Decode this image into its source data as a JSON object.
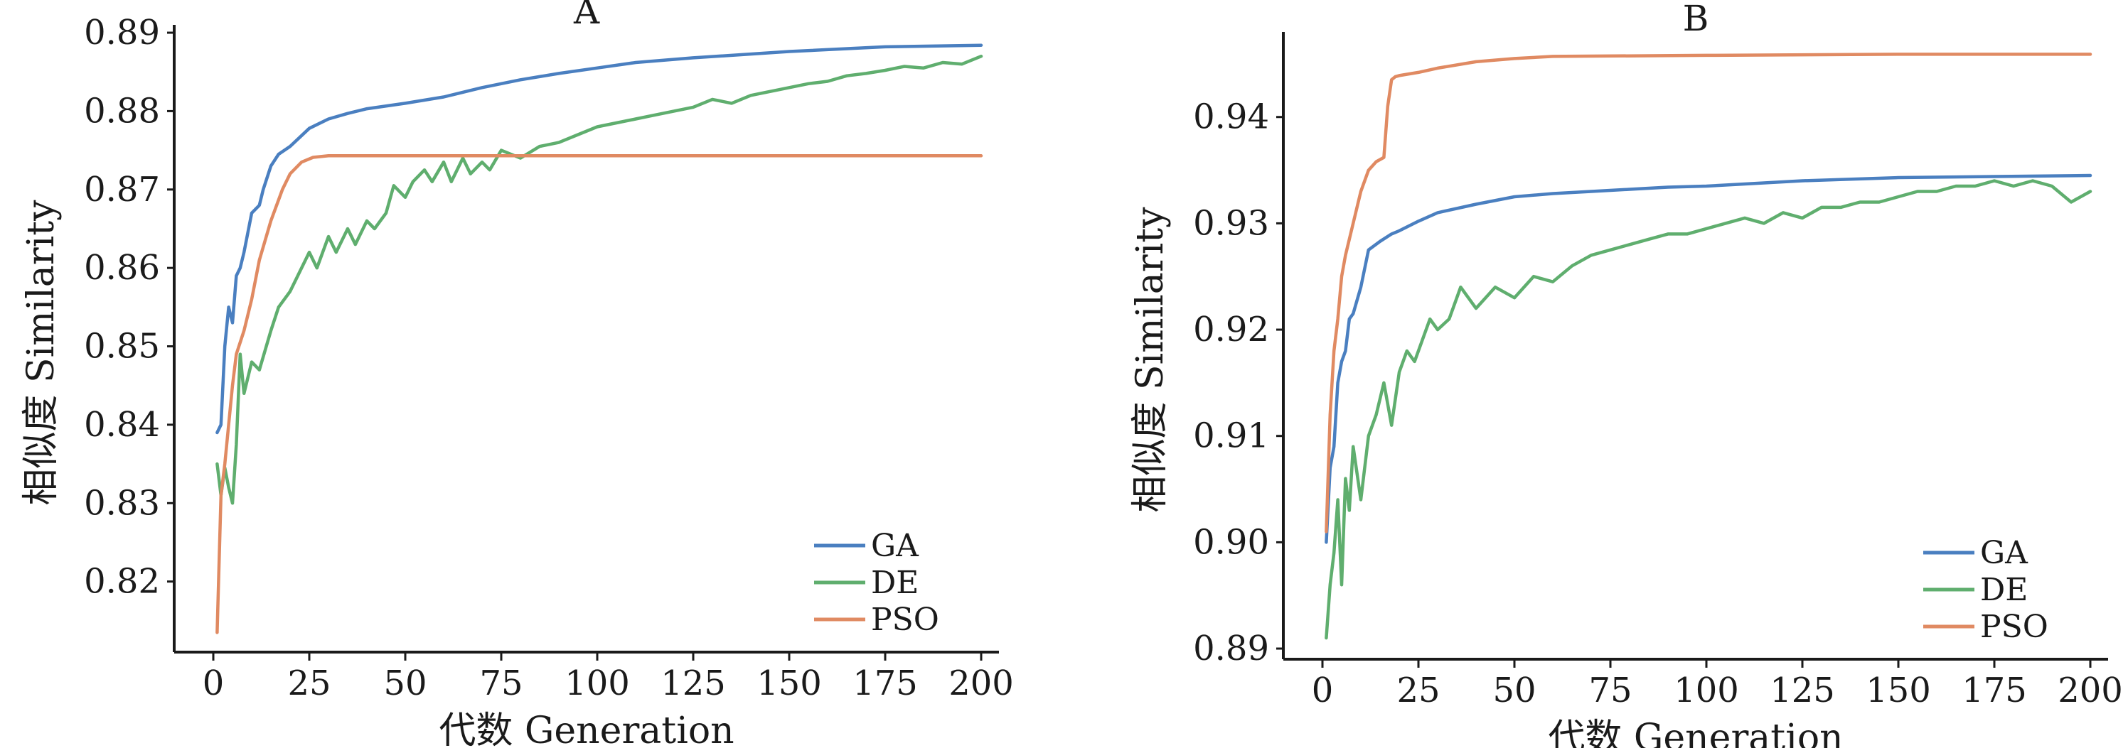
{
  "chart_data": [
    {
      "type": "line",
      "title": "A",
      "xlabel": "代数 Generation",
      "ylabel": "相似度 Similarity",
      "xlim": [
        0,
        200
      ],
      "ylim": [
        0.811,
        0.891
      ],
      "xticks": [
        0,
        25,
        50,
        75,
        100,
        125,
        150,
        175,
        200
      ],
      "yticks": [
        0.82,
        0.83,
        0.84,
        0.85,
        0.86,
        0.87,
        0.88,
        0.89
      ],
      "ytick_labels": [
        "0.82",
        "0.83",
        "0.84",
        "0.85",
        "0.86",
        "0.87",
        "0.88",
        "0.89"
      ],
      "legend": "bottom-right",
      "grid": false,
      "series": [
        {
          "name": "GA",
          "color": "#4a7fc0",
          "x": [
            1,
            2,
            3,
            4,
            5,
            6,
            7,
            8,
            10,
            12,
            13,
            15,
            17,
            20,
            25,
            30,
            35,
            40,
            50,
            60,
            70,
            80,
            90,
            100,
            110,
            125,
            150,
            175,
            200
          ],
          "y": [
            0.839,
            0.84,
            0.85,
            0.855,
            0.853,
            0.859,
            0.86,
            0.862,
            0.867,
            0.868,
            0.87,
            0.873,
            0.8745,
            0.8755,
            0.8778,
            0.879,
            0.8797,
            0.8803,
            0.881,
            0.8818,
            0.883,
            0.884,
            0.8848,
            0.8855,
            0.8862,
            0.8868,
            0.8876,
            0.8882,
            0.8884
          ]
        },
        {
          "name": "DE",
          "color": "#5fae6e",
          "x": [
            1,
            2,
            3,
            4,
            5,
            6,
            7,
            8,
            10,
            12,
            15,
            17,
            20,
            22,
            25,
            27,
            30,
            32,
            35,
            37,
            40,
            42,
            45,
            47,
            50,
            52,
            55,
            57,
            60,
            62,
            65,
            67,
            70,
            72,
            75,
            80,
            85,
            90,
            95,
            100,
            105,
            110,
            115,
            120,
            125,
            130,
            135,
            140,
            145,
            150,
            155,
            160,
            165,
            170,
            175,
            180,
            185,
            190,
            195,
            200
          ],
          "y": [
            0.835,
            0.831,
            0.8345,
            0.832,
            0.83,
            0.8375,
            0.849,
            0.844,
            0.848,
            0.847,
            0.852,
            0.855,
            0.857,
            0.859,
            0.862,
            0.86,
            0.864,
            0.862,
            0.865,
            0.863,
            0.866,
            0.865,
            0.867,
            0.8705,
            0.869,
            0.871,
            0.8725,
            0.871,
            0.8735,
            0.871,
            0.874,
            0.872,
            0.8735,
            0.8725,
            0.875,
            0.874,
            0.8755,
            0.876,
            0.877,
            0.878,
            0.8785,
            0.879,
            0.8795,
            0.88,
            0.8805,
            0.8815,
            0.881,
            0.882,
            0.8825,
            0.883,
            0.8835,
            0.8838,
            0.8845,
            0.8848,
            0.8852,
            0.8857,
            0.8855,
            0.8862,
            0.886,
            0.887
          ]
        },
        {
          "name": "PSO",
          "color": "#e08a62",
          "x": [
            1,
            2,
            3,
            4,
            5,
            6,
            8,
            10,
            12,
            15,
            18,
            20,
            23,
            26,
            30,
            35,
            40,
            200
          ],
          "y": [
            0.8135,
            0.831,
            0.835,
            0.84,
            0.845,
            0.849,
            0.852,
            0.856,
            0.861,
            0.866,
            0.87,
            0.872,
            0.8735,
            0.8741,
            0.8743,
            0.8743,
            0.8743,
            0.8743
          ]
        }
      ]
    },
    {
      "type": "line",
      "title": "B",
      "xlabel": "代数 Generation",
      "ylabel": "相似度 Similarity",
      "xlim": [
        0,
        200
      ],
      "ylim": [
        0.889,
        0.948
      ],
      "xticks": [
        0,
        25,
        50,
        75,
        100,
        125,
        150,
        175,
        200
      ],
      "yticks": [
        0.89,
        0.9,
        0.91,
        0.92,
        0.93,
        0.94
      ],
      "ytick_labels": [
        "0.89",
        "0.90",
        "0.91",
        "0.92",
        "0.93",
        "0.94"
      ],
      "legend": "bottom-right",
      "grid": false,
      "series": [
        {
          "name": "GA",
          "color": "#4a7fc0",
          "x": [
            1,
            2,
            3,
            4,
            5,
            6,
            7,
            8,
            10,
            12,
            15,
            18,
            20,
            25,
            30,
            40,
            50,
            60,
            70,
            80,
            90,
            100,
            110,
            125,
            150,
            175,
            200
          ],
          "y": [
            0.9,
            0.907,
            0.909,
            0.915,
            0.917,
            0.918,
            0.921,
            0.9215,
            0.924,
            0.9275,
            0.9283,
            0.929,
            0.9293,
            0.9302,
            0.931,
            0.9318,
            0.9325,
            0.9328,
            0.933,
            0.9332,
            0.9334,
            0.9335,
            0.9337,
            0.934,
            0.9343,
            0.9344,
            0.9345
          ]
        },
        {
          "name": "DE",
          "color": "#5fae6e",
          "x": [
            1,
            2,
            3,
            4,
            5,
            6,
            7,
            8,
            10,
            12,
            14,
            16,
            18,
            20,
            22,
            24,
            26,
            28,
            30,
            33,
            36,
            40,
            45,
            50,
            55,
            60,
            65,
            70,
            75,
            80,
            85,
            90,
            95,
            100,
            105,
            110,
            115,
            120,
            125,
            130,
            135,
            140,
            145,
            150,
            155,
            160,
            165,
            170,
            175,
            180,
            185,
            190,
            195,
            200
          ],
          "y": [
            0.891,
            0.896,
            0.899,
            0.904,
            0.896,
            0.906,
            0.903,
            0.909,
            0.904,
            0.91,
            0.912,
            0.915,
            0.911,
            0.916,
            0.918,
            0.917,
            0.919,
            0.921,
            0.92,
            0.921,
            0.924,
            0.922,
            0.924,
            0.923,
            0.925,
            0.9245,
            0.926,
            0.927,
            0.9275,
            0.928,
            0.9285,
            0.929,
            0.929,
            0.9295,
            0.93,
            0.9305,
            0.93,
            0.931,
            0.9305,
            0.9315,
            0.9315,
            0.932,
            0.932,
            0.9325,
            0.933,
            0.933,
            0.9335,
            0.9335,
            0.934,
            0.9335,
            0.934,
            0.9335,
            0.932,
            0.933
          ]
        },
        {
          "name": "PSO",
          "color": "#e08a62",
          "x": [
            1,
            2,
            3,
            4,
            5,
            6,
            8,
            10,
            12,
            14,
            16,
            17,
            18,
            19,
            20,
            25,
            30,
            40,
            50,
            60,
            100,
            150,
            200
          ],
          "y": [
            0.901,
            0.912,
            0.918,
            0.921,
            0.925,
            0.927,
            0.93,
            0.933,
            0.935,
            0.9358,
            0.9362,
            0.941,
            0.9435,
            0.9438,
            0.9439,
            0.9442,
            0.9446,
            0.9452,
            0.9455,
            0.9457,
            0.9458,
            0.9459,
            0.9459
          ]
        }
      ]
    }
  ]
}
